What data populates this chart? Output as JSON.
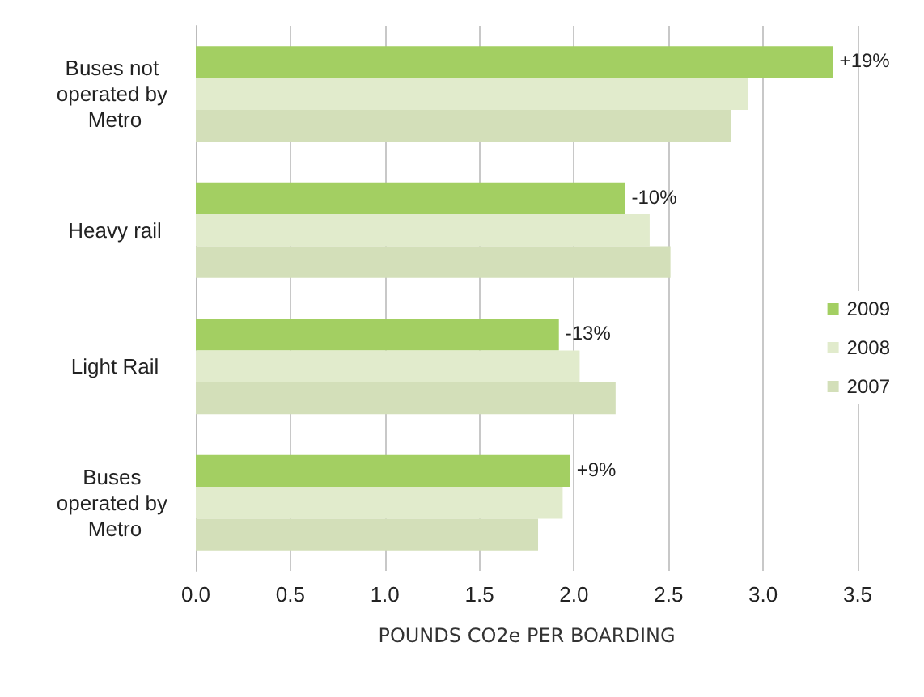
{
  "chart_data": {
    "type": "bar",
    "orientation": "horizontal",
    "xlabel": "POUNDS CO2e PER BOARDING",
    "categories": [
      "Buses not operated by Metro",
      "Heavy rail",
      "Light Rail",
      "Buses operated by Metro"
    ],
    "series": [
      {
        "name": "2009",
        "color": "#a3cf62",
        "values": [
          3.37,
          2.27,
          1.92,
          1.98
        ]
      },
      {
        "name": "2008",
        "color": "#e1ebcc",
        "values": [
          2.92,
          2.4,
          2.03,
          1.94
        ]
      },
      {
        "name": "2007",
        "color": "#d3dfb9",
        "values": [
          2.83,
          2.51,
          2.22,
          1.81
        ]
      }
    ],
    "xlim": [
      0,
      3.5
    ],
    "xticks": [
      {
        "value": 0,
        "label": "0.0"
      },
      0.5,
      {
        "value": 1,
        "label": "1.0"
      },
      1.5,
      {
        "value": 2,
        "label": "2.0"
      },
      2.5,
      {
        "value": 3,
        "label": "3.0"
      },
      3.5
    ],
    "grid": "x",
    "legend": "right",
    "annotations": [
      "+19%",
      "-10%",
      "-13%",
      "+9%"
    ]
  }
}
